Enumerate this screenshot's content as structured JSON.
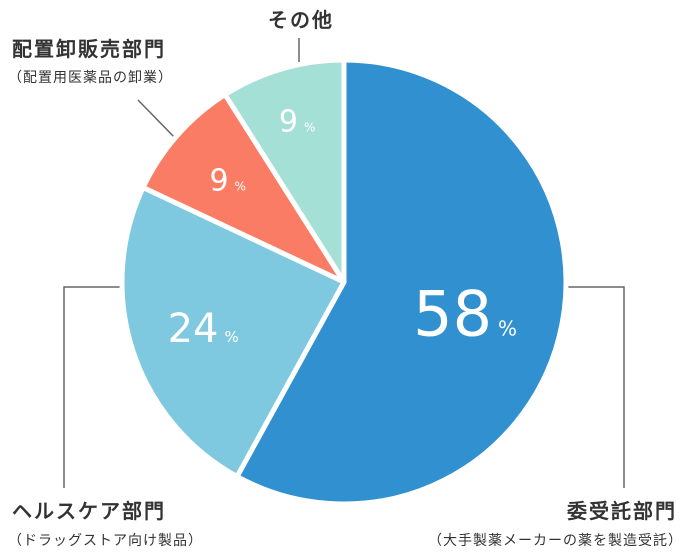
{
  "chart_data": {
    "type": "pie",
    "slices": [
      {
        "label": "委受託部門",
        "sublabel": "（大手製薬メーカーの薬を製造受託）",
        "value": 58,
        "color": "#3190d0"
      },
      {
        "label": "ヘルスケア部門",
        "sublabel": "（ドラッグストア向け製品）",
        "value": 24,
        "color": "#7ec8e0"
      },
      {
        "label": "配置卸販売部門",
        "sublabel": "（配置用医薬品の卸業）",
        "value": 9,
        "color": "#fa7c65"
      },
      {
        "label": "その他",
        "sublabel": "",
        "value": 9,
        "color": "#a4e0d6"
      }
    ],
    "unit": "%",
    "legend": "none",
    "start": "top, clockwise"
  }
}
